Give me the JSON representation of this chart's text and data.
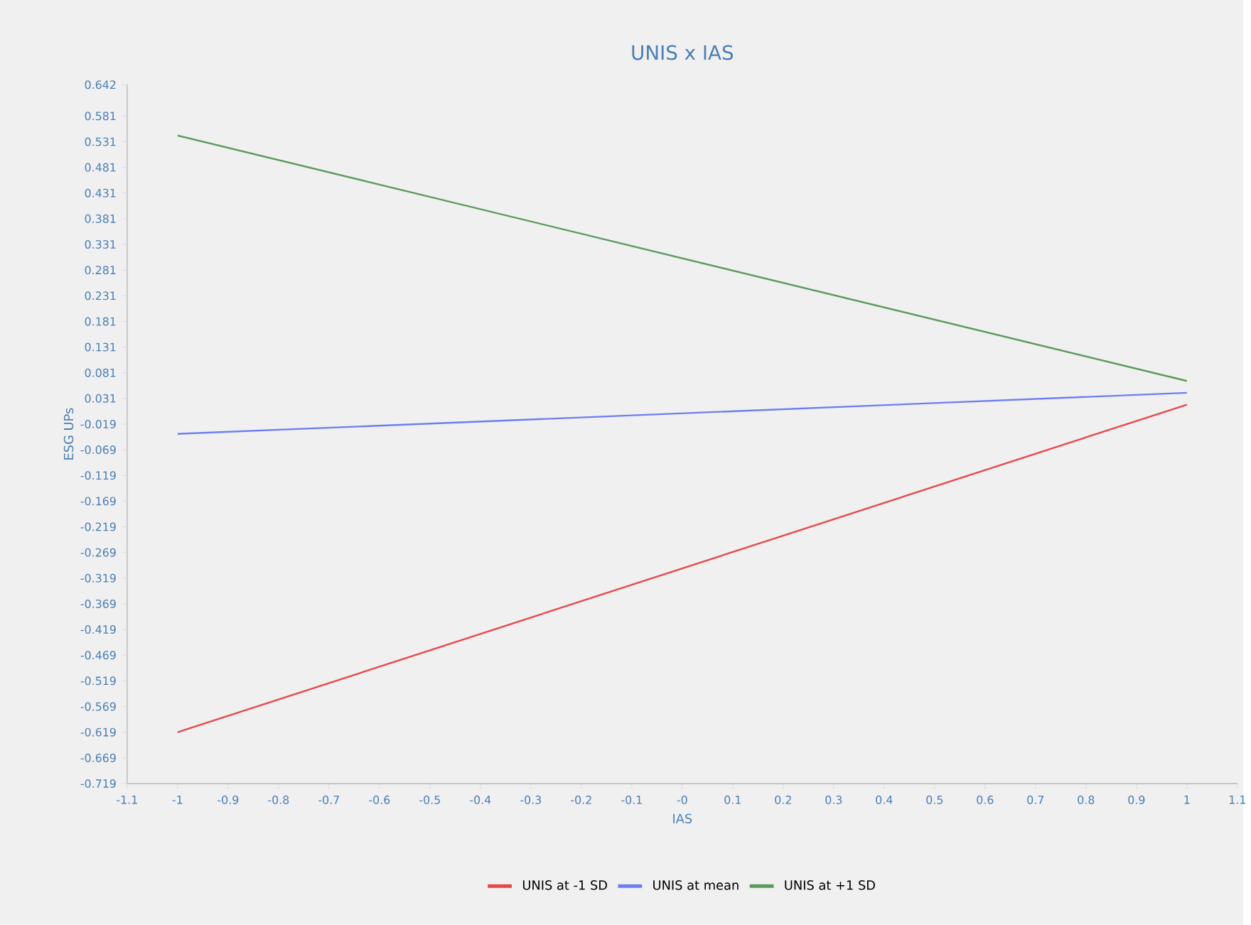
{
  "chart_data": {
    "type": "line",
    "title": "UNIS x IAS",
    "xlabel": "IAS",
    "ylabel": "ESG UPs",
    "x": [
      -1,
      1
    ],
    "series": [
      {
        "name": "UNIS at -1 SD",
        "color": "#e8474a",
        "values": [
          -0.619,
          0.019
        ]
      },
      {
        "name": "UNIS at mean",
        "color": "#6b7ff0",
        "values": [
          -0.038,
          0.042
        ]
      },
      {
        "name": "UNIS at +1 SD",
        "color": "#5a9a5a",
        "values": [
          0.543,
          0.065
        ]
      }
    ],
    "xlim": [
      -1.1,
      1.1
    ],
    "xticks": [
      -1.1,
      -1,
      -0.9,
      -0.8,
      -0.7,
      -0.6,
      -0.5,
      -0.4,
      -0.3,
      -0.2,
      -0.1,
      {
        "value": 0,
        "label": "-0"
      },
      0.1,
      0.2,
      0.3,
      0.4,
      0.5,
      0.6,
      0.7,
      0.8,
      0.9,
      1,
      1.1
    ],
    "ylim": [
      -0.719,
      0.642
    ],
    "yticks": [
      -0.719,
      -0.669,
      -0.619,
      -0.569,
      -0.519,
      -0.469,
      -0.419,
      -0.369,
      -0.319,
      -0.269,
      -0.219,
      -0.169,
      -0.119,
      -0.069,
      -0.019,
      0.031,
      0.081,
      0.131,
      0.181,
      0.231,
      0.281,
      0.331,
      0.381,
      0.431,
      0.481,
      0.531,
      0.581,
      0.642
    ],
    "grid": false,
    "legend": "bottom",
    "marker": "none",
    "line_style": "solid"
  }
}
